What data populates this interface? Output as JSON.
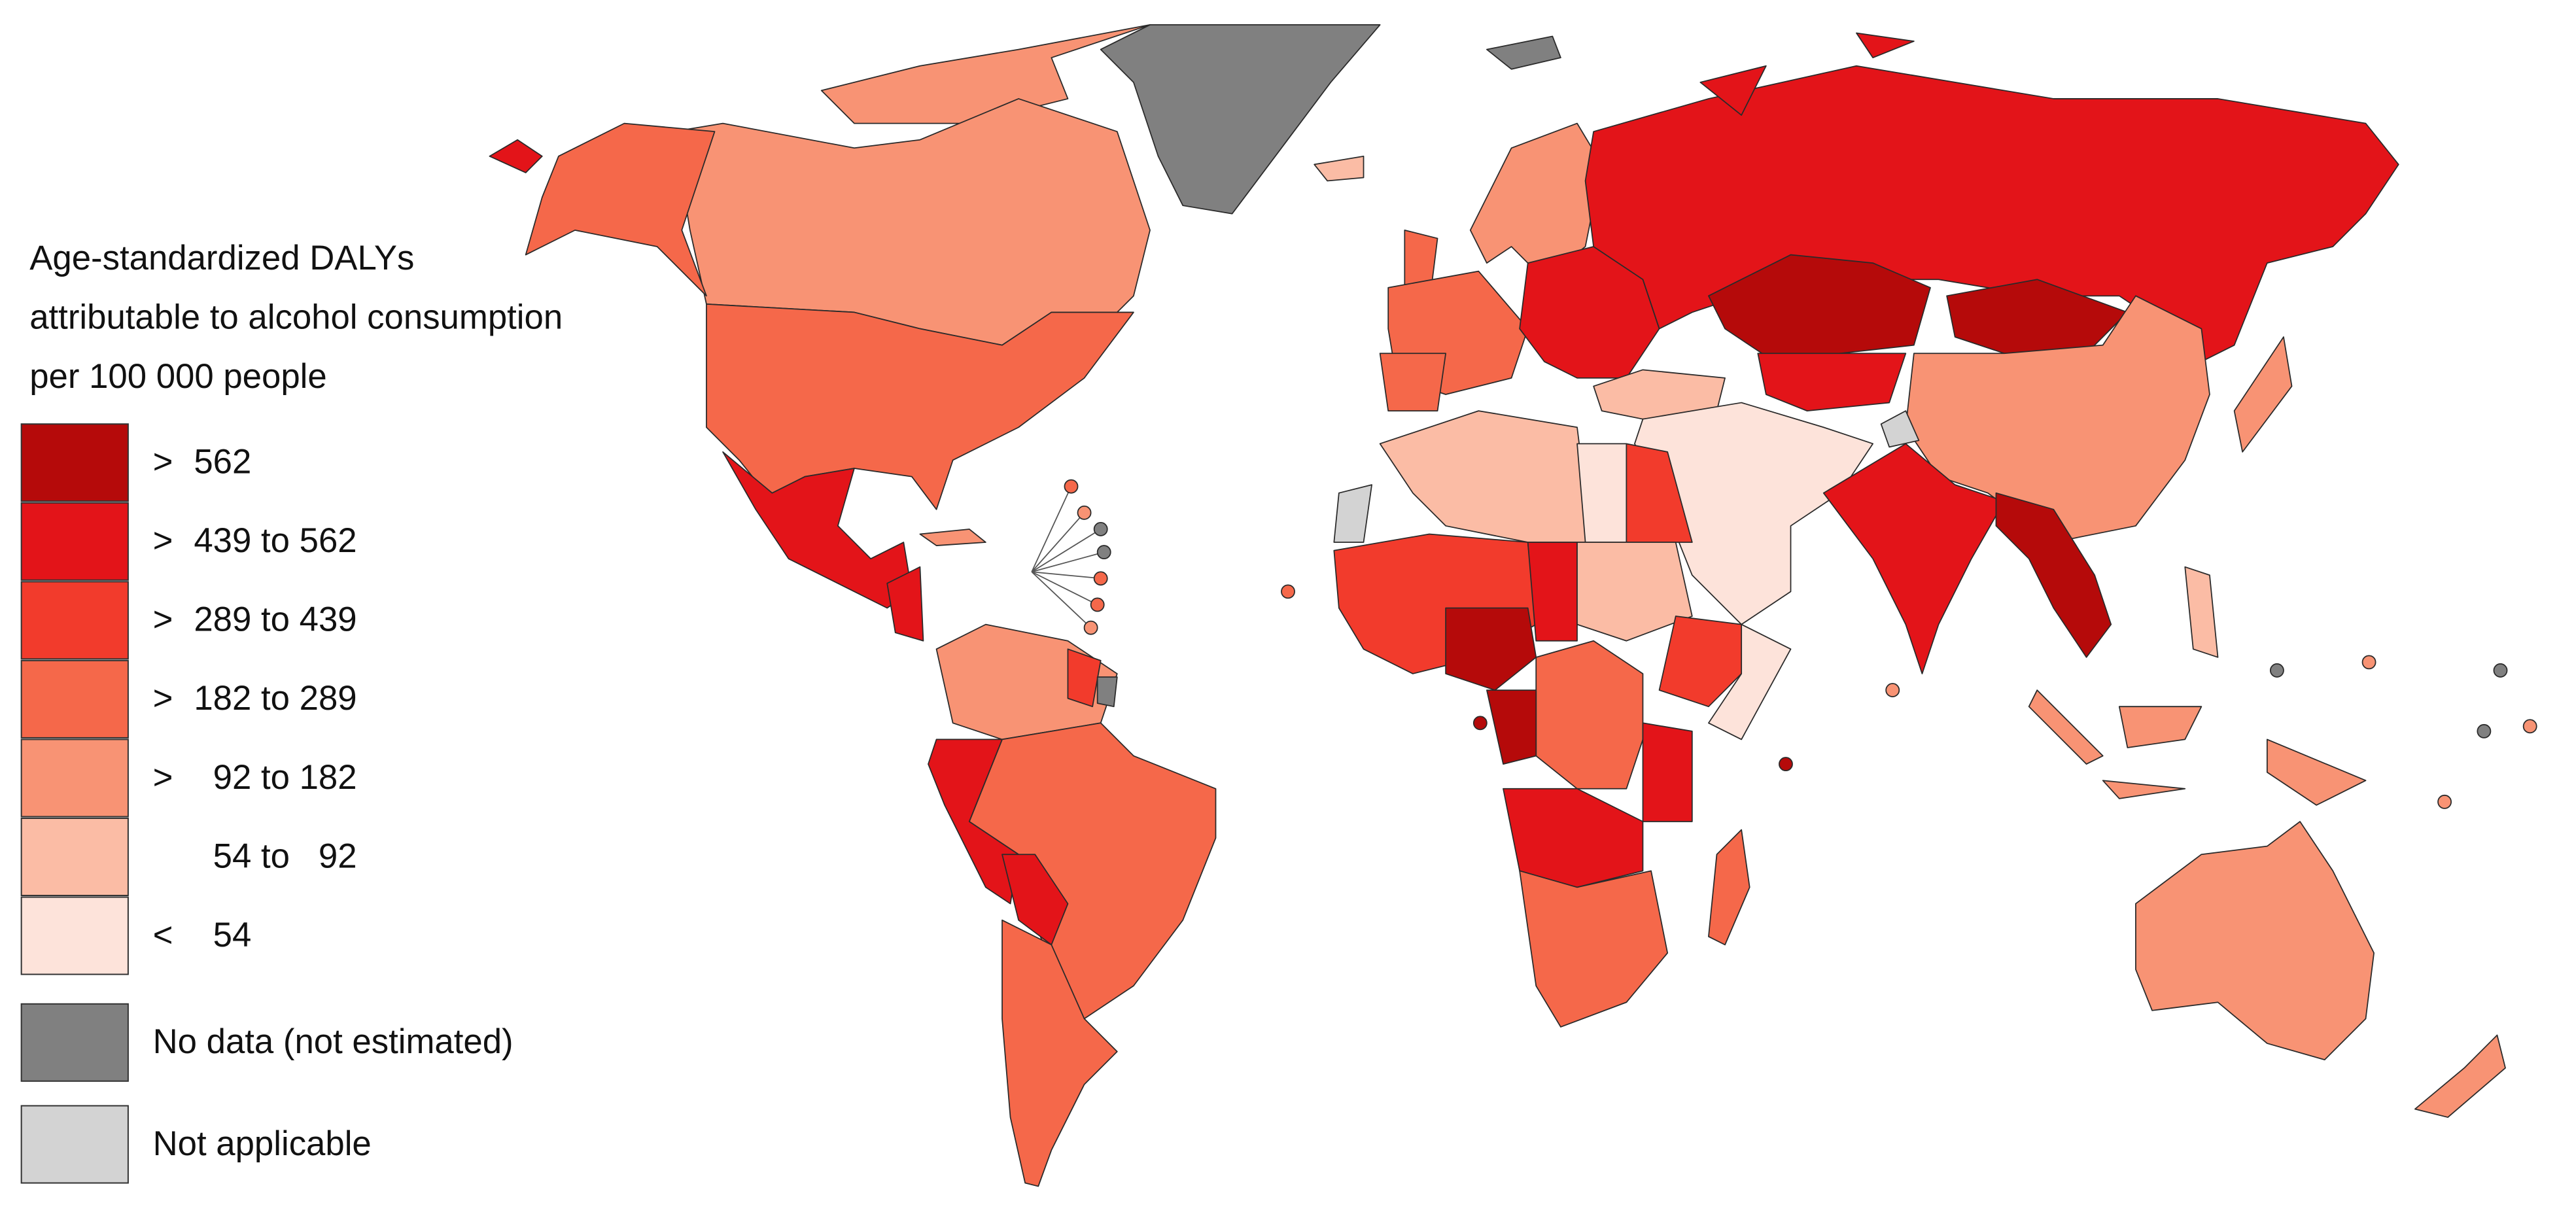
{
  "legend": {
    "title": [
      "Age-standardized DALYs",
      "attributable to alcohol consumption",
      "per 100 000 people"
    ],
    "items": [
      {
        "symbol": ">",
        "range": "562",
        "color": "#b50a0a"
      },
      {
        "symbol": ">",
        "range": "439 to 562",
        "color": "#e31419"
      },
      {
        "symbol": ">",
        "range": "289 to 439",
        "color": "#f23b2c"
      },
      {
        "symbol": ">",
        "range": "182 to 289",
        "color": "#f5684a"
      },
      {
        "symbol": ">",
        "range": "  92 to 182",
        "color": "#f89374"
      },
      {
        "range": "  54 to   92",
        "color": "#fbbca5"
      },
      {
        "symbol": "<",
        "range": "  54",
        "color": "#fde3da"
      },
      {
        "label": "No data (not estimated)",
        "color": "#808080"
      },
      {
        "label": "Not applicable",
        "color": "#d3d3d3"
      }
    ]
  }
}
